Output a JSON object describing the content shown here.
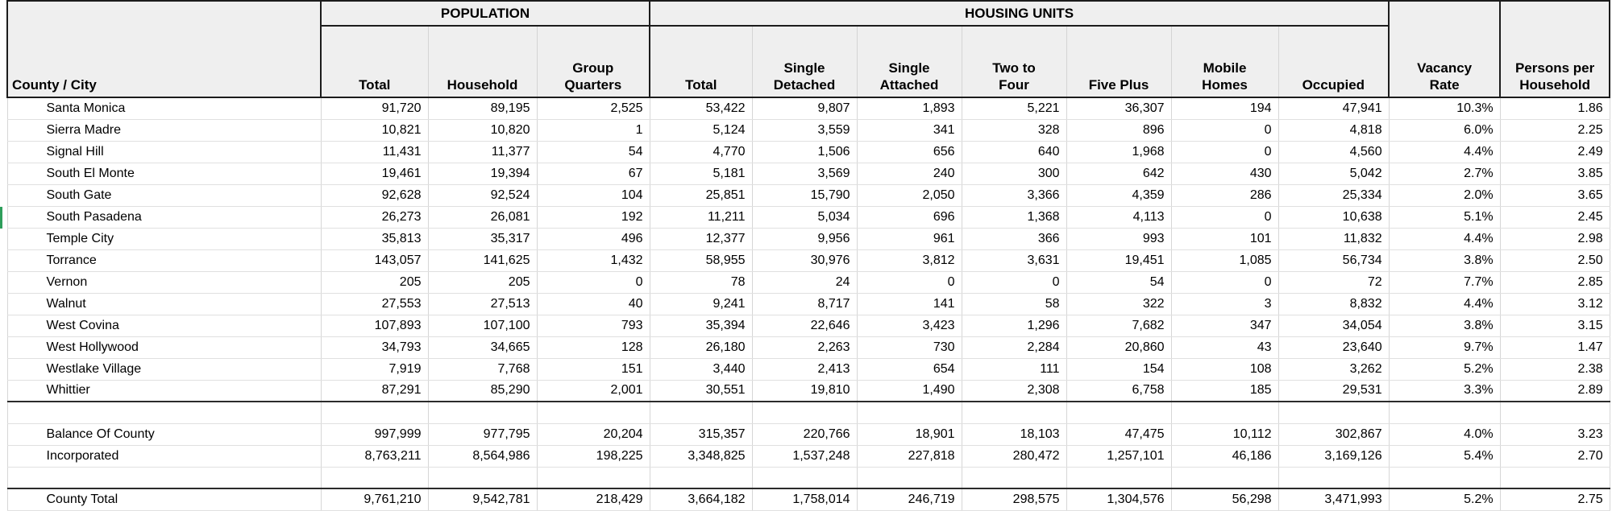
{
  "table": {
    "corner_header": "County / City",
    "group_headers": {
      "population": "POPULATION",
      "housing_units": "HOUSING UNITS"
    },
    "column_headers": {
      "pop_total": "Total",
      "pop_household": "Household",
      "pop_group_quarters": "Group\nQuarters",
      "hu_total": "Total",
      "hu_single_detached": "Single\nDetached",
      "hu_single_attached": "Single\nAttached",
      "hu_two_to_four": "Two to\nFour",
      "hu_five_plus": "Five Plus",
      "hu_mobile_homes": "Mobile\nHomes",
      "hu_occupied": "Occupied",
      "vacancy_rate": "Vacancy\nRate",
      "persons_per_household": "Persons per\nHousehold"
    },
    "rows": [
      {
        "kind": "city",
        "cells": [
          "Santa Monica",
          "91,720",
          "89,195",
          "2,525",
          "53,422",
          "9,807",
          "1,893",
          "5,221",
          "36,307",
          "194",
          "47,941",
          "10.3%",
          "1.86"
        ]
      },
      {
        "kind": "city",
        "cells": [
          "Sierra Madre",
          "10,821",
          "10,820",
          "1",
          "5,124",
          "3,559",
          "341",
          "328",
          "896",
          "0",
          "4,818",
          "6.0%",
          "2.25"
        ]
      },
      {
        "kind": "city",
        "cells": [
          "Signal Hill",
          "11,431",
          "11,377",
          "54",
          "4,770",
          "1,506",
          "656",
          "640",
          "1,968",
          "0",
          "4,560",
          "4.4%",
          "2.49"
        ]
      },
      {
        "kind": "city",
        "cells": [
          "South El Monte",
          "19,461",
          "19,394",
          "67",
          "5,181",
          "3,569",
          "240",
          "300",
          "642",
          "430",
          "5,042",
          "2.7%",
          "3.85"
        ]
      },
      {
        "kind": "city",
        "cells": [
          "South Gate",
          "92,628",
          "92,524",
          "104",
          "25,851",
          "15,790",
          "2,050",
          "3,366",
          "4,359",
          "286",
          "25,334",
          "2.0%",
          "3.65"
        ]
      },
      {
        "kind": "city",
        "cells": [
          "South Pasadena",
          "26,273",
          "26,081",
          "192",
          "11,211",
          "5,034",
          "696",
          "1,368",
          "4,113",
          "0",
          "10,638",
          "5.1%",
          "2.45"
        ]
      },
      {
        "kind": "city",
        "cells": [
          "Temple City",
          "35,813",
          "35,317",
          "496",
          "12,377",
          "9,956",
          "961",
          "366",
          "993",
          "101",
          "11,832",
          "4.4%",
          "2.98"
        ]
      },
      {
        "kind": "city",
        "cells": [
          "Torrance",
          "143,057",
          "141,625",
          "1,432",
          "58,955",
          "30,976",
          "3,812",
          "3,631",
          "19,451",
          "1,085",
          "56,734",
          "3.8%",
          "2.50"
        ]
      },
      {
        "kind": "city",
        "cells": [
          "Vernon",
          "205",
          "205",
          "0",
          "78",
          "24",
          "0",
          "0",
          "54",
          "0",
          "72",
          "7.7%",
          "2.85"
        ]
      },
      {
        "kind": "city",
        "cells": [
          "Walnut",
          "27,553",
          "27,513",
          "40",
          "9,241",
          "8,717",
          "141",
          "58",
          "322",
          "3",
          "8,832",
          "4.4%",
          "3.12"
        ]
      },
      {
        "kind": "city",
        "cells": [
          "West Covina",
          "107,893",
          "107,100",
          "793",
          "35,394",
          "22,646",
          "3,423",
          "1,296",
          "7,682",
          "347",
          "34,054",
          "3.8%",
          "3.15"
        ]
      },
      {
        "kind": "city",
        "cells": [
          "West Hollywood",
          "34,793",
          "34,665",
          "128",
          "26,180",
          "2,263",
          "730",
          "2,284",
          "20,860",
          "43",
          "23,640",
          "9.7%",
          "1.47"
        ]
      },
      {
        "kind": "city",
        "cells": [
          "Westlake Village",
          "7,919",
          "7,768",
          "151",
          "3,440",
          "2,413",
          "654",
          "111",
          "154",
          "108",
          "3,262",
          "5.2%",
          "2.38"
        ]
      },
      {
        "kind": "city-end",
        "cells": [
          "Whittier",
          "87,291",
          "85,290",
          "2,001",
          "30,551",
          "19,810",
          "1,490",
          "2,308",
          "6,758",
          "185",
          "29,531",
          "3.3%",
          "2.89"
        ]
      },
      {
        "kind": "blank",
        "cells": [
          "",
          "",
          "",
          "",
          "",
          "",
          "",
          "",
          "",
          "",
          "",
          "",
          ""
        ]
      },
      {
        "kind": "summary",
        "cells": [
          "Balance Of County",
          "997,999",
          "977,795",
          "20,204",
          "315,357",
          "220,766",
          "18,901",
          "18,103",
          "47,475",
          "10,112",
          "302,867",
          "4.0%",
          "3.23"
        ]
      },
      {
        "kind": "summary",
        "cells": [
          "Incorporated",
          "8,763,211",
          "8,564,986",
          "198,225",
          "3,348,825",
          "1,537,248",
          "227,818",
          "280,472",
          "1,257,101",
          "46,186",
          "3,169,126",
          "5.4%",
          "2.70"
        ]
      },
      {
        "kind": "blank",
        "cells": [
          "",
          "",
          "",
          "",
          "",
          "",
          "",
          "",
          "",
          "",
          "",
          "",
          ""
        ]
      },
      {
        "kind": "total",
        "cells": [
          "County Total",
          "9,761,210",
          "9,542,781",
          "218,429",
          "3,664,182",
          "1,758,014",
          "246,719",
          "298,575",
          "1,304,576",
          "56,298",
          "3,471,993",
          "5.2%",
          "2.75"
        ]
      }
    ]
  },
  "selection": {
    "color": "#2e9e5b"
  }
}
